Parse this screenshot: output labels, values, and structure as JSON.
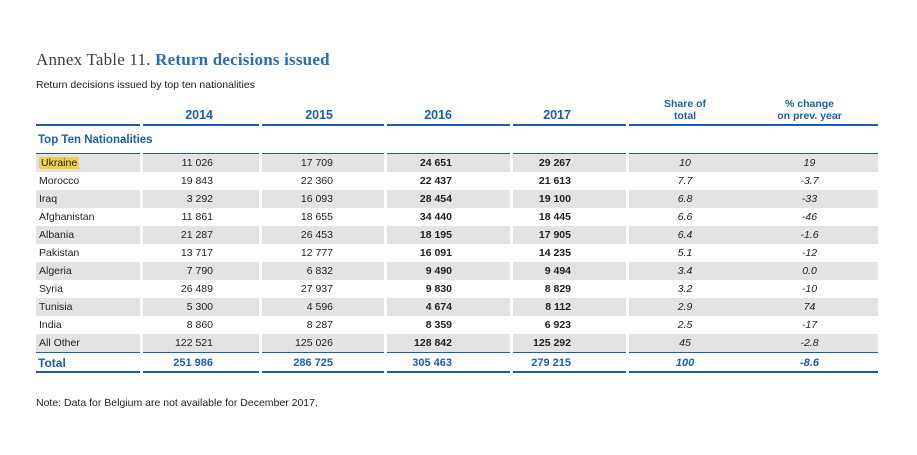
{
  "title": {
    "prefix": "Annex Table 11.",
    "main": "Return decisions issued"
  },
  "subtitle": "Return decisions issued by top ten nationalities",
  "table": {
    "year_headers": {
      "y2014": "2014",
      "y2015": "2015",
      "y2016": "2016",
      "y2017": "2017"
    },
    "share_header": {
      "line1": "Share of",
      "line2": "total"
    },
    "change_header": {
      "line1": "% change",
      "line2": "on prev. year"
    },
    "section_label": "Top Ten Nationalities",
    "rows": [
      {
        "name": "Ukraine",
        "highlight": true,
        "v2014": "11 026",
        "v2015": "17 709",
        "v2016": "24 651",
        "v2017": "29 267",
        "share": "10",
        "change": "19"
      },
      {
        "name": "Morocco",
        "highlight": false,
        "v2014": "19 843",
        "v2015": "22 360",
        "v2016": "22 437",
        "v2017": "21 613",
        "share": "7.7",
        "change": "-3.7"
      },
      {
        "name": "Iraq",
        "highlight": false,
        "v2014": "3 292",
        "v2015": "16 093",
        "v2016": "28 454",
        "v2017": "19 100",
        "share": "6.8",
        "change": "-33"
      },
      {
        "name": "Afghanistan",
        "highlight": false,
        "v2014": "11 861",
        "v2015": "18 655",
        "v2016": "34 440",
        "v2017": "18 445",
        "share": "6.6",
        "change": "-46"
      },
      {
        "name": "Albania",
        "highlight": false,
        "v2014": "21 287",
        "v2015": "26 453",
        "v2016": "18 195",
        "v2017": "17 905",
        "share": "6.4",
        "change": "-1.6"
      },
      {
        "name": "Pakistan",
        "highlight": false,
        "v2014": "13 717",
        "v2015": "12 777",
        "v2016": "16 091",
        "v2017": "14 235",
        "share": "5.1",
        "change": "-12"
      },
      {
        "name": "Algeria",
        "highlight": false,
        "v2014": "7 790",
        "v2015": "6 832",
        "v2016": "9 490",
        "v2017": "9 494",
        "share": "3.4",
        "change": "0.0"
      },
      {
        "name": "Syria",
        "highlight": false,
        "v2014": "26 489",
        "v2015": "27 937",
        "v2016": "9 830",
        "v2017": "8 829",
        "share": "3.2",
        "change": "-10"
      },
      {
        "name": "Tunisia",
        "highlight": false,
        "v2014": "5 300",
        "v2015": "4 596",
        "v2016": "4 674",
        "v2017": "8 112",
        "share": "2.9",
        "change": "74"
      },
      {
        "name": "India",
        "highlight": false,
        "v2014": "8 860",
        "v2015": "8 287",
        "v2016": "8 359",
        "v2017": "6 923",
        "share": "2.5",
        "change": "-17"
      },
      {
        "name": "All Other",
        "highlight": false,
        "v2014": "122 521",
        "v2015": "125 026",
        "v2016": "128 842",
        "v2017": "125 292",
        "share": "45",
        "change": "-2.8"
      }
    ],
    "total": {
      "label": "Total",
      "v2014": "251 986",
      "v2015": "286 725",
      "v2016": "305 463",
      "v2017": "279 215",
      "share": "100",
      "change": "-8.6"
    }
  },
  "note": "Note: Data for Belgium are not available for December 2017.",
  "colors": {
    "accent_blue": "#1d5fa8",
    "title_blue": "#2a6db8",
    "row_gray": "#e3e3e3",
    "highlight_yellow": "#edd04c",
    "text_dark": "#1f1f1f"
  }
}
